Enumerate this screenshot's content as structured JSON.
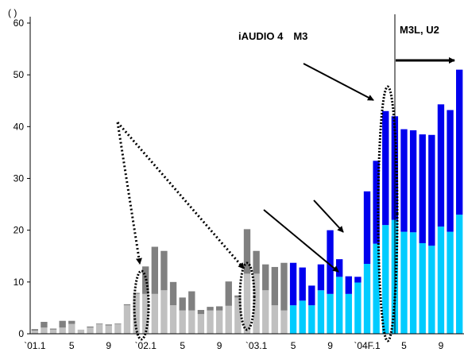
{
  "chart_data": {
    "type": "bar",
    "stacked": true,
    "y_unit_label": "( )",
    "ylim": [
      0,
      60
    ],
    "y_ticks": [
      0,
      10,
      20,
      30,
      40,
      50,
      60
    ],
    "x_tick_labels": [
      {
        "index": 0,
        "label": "`01.1"
      },
      {
        "index": 4,
        "label": "5"
      },
      {
        "index": 8,
        "label": "9"
      },
      {
        "index": 12,
        "label": "`02.1"
      },
      {
        "index": 16,
        "label": "5"
      },
      {
        "index": 20,
        "label": "9"
      },
      {
        "index": 24,
        "label": "`03.1"
      },
      {
        "index": 28,
        "label": "5"
      },
      {
        "index": 32,
        "label": "9"
      },
      {
        "index": 36,
        "label": "`04F.1"
      },
      {
        "index": 40,
        "label": "5"
      },
      {
        "index": 44,
        "label": "9"
      }
    ],
    "series": [
      {
        "color": "#C0C0C0",
        "values": [
          0.6,
          1.2,
          0.8,
          1.2,
          1.9,
          0.8,
          1.2,
          1.9,
          1.6,
          1.9,
          5.5,
          7.7,
          7.7,
          7.7,
          8.4,
          5.5,
          4.5,
          4.5,
          3.8,
          4.5,
          4.5,
          5.4,
          7.0,
          11.6,
          11.6,
          8.4,
          5.5,
          4.5,
          null,
          null,
          null,
          null,
          null,
          null,
          null,
          null,
          null,
          null,
          null,
          null,
          null,
          null,
          null,
          null,
          null,
          null,
          null
        ]
      },
      {
        "color": "#808080",
        "values": [
          0.3,
          1.1,
          0.2,
          1.3,
          0.6,
          0.0,
          0.2,
          0.1,
          0.2,
          0.1,
          0.2,
          0.2,
          5.3,
          9.1,
          7.6,
          4.5,
          2.5,
          3.7,
          0.8,
          0.7,
          0.8,
          4.7,
          0.4,
          8.6,
          4.4,
          5.0,
          7.4,
          9.2,
          null,
          null,
          null,
          null,
          null,
          null,
          null,
          null,
          null,
          null,
          null,
          null,
          null,
          null,
          null,
          null,
          null,
          null,
          null
        ]
      },
      {
        "color": "#00CCFF",
        "values": [
          null,
          null,
          null,
          null,
          null,
          null,
          null,
          null,
          null,
          null,
          null,
          null,
          null,
          null,
          null,
          null,
          null,
          null,
          null,
          null,
          null,
          null,
          null,
          null,
          null,
          null,
          null,
          null,
          5.5,
          6.4,
          5.5,
          8.4,
          7.7,
          11.0,
          7.7,
          9.9,
          13.5,
          17.4,
          21.0,
          22.0,
          19.7,
          19.6,
          17.5,
          17.0,
          20.7,
          19.7,
          23.0
        ]
      },
      {
        "color": "#0000EE",
        "values": [
          null,
          null,
          null,
          null,
          null,
          null,
          null,
          null,
          null,
          null,
          null,
          null,
          null,
          null,
          null,
          null,
          null,
          null,
          null,
          null,
          null,
          null,
          null,
          null,
          null,
          null,
          null,
          null,
          8.2,
          6.4,
          3.8,
          5.0,
          12.3,
          3.4,
          3.4,
          1.1,
          14.0,
          16.0,
          22.0,
          20.0,
          19.8,
          19.7,
          21.0,
          21.4,
          23.6,
          23.5,
          28.0
        ]
      }
    ],
    "annotations": {
      "device_label": "iAUDIO 4　M3",
      "release_label": "M3L, U2"
    }
  }
}
